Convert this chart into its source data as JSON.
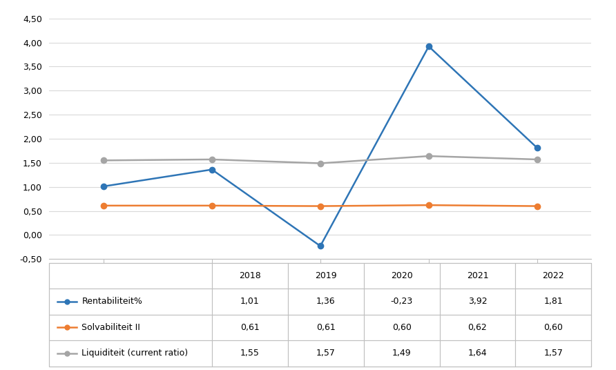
{
  "years": [
    2018,
    2019,
    2020,
    2021,
    2022
  ],
  "rentabiliteit": [
    1.01,
    1.36,
    -0.23,
    3.92,
    1.81
  ],
  "solvabiliteit": [
    0.61,
    0.61,
    0.6,
    0.62,
    0.6
  ],
  "liquiditeit": [
    1.55,
    1.57,
    1.49,
    1.64,
    1.57
  ],
  "rentabiliteit_color": "#2E75B6",
  "solvabiliteit_color": "#ED7D31",
  "liquiditeit_color": "#A5A5A5",
  "ylim": [
    -0.5,
    4.5
  ],
  "yticks": [
    -0.5,
    0.0,
    0.5,
    1.0,
    1.5,
    2.0,
    2.5,
    3.0,
    3.5,
    4.0,
    4.5
  ],
  "legend_labels": [
    "Rentabiliteit%",
    "Solvabiliteit II",
    "Liquiditeit (current ratio)"
  ],
  "table_values": [
    [
      1.01,
      1.36,
      -0.23,
      3.92,
      1.81
    ],
    [
      0.61,
      0.61,
      0.6,
      0.62,
      0.6
    ],
    [
      1.55,
      1.57,
      1.49,
      1.64,
      1.57
    ]
  ],
  "background_color": "#FFFFFF",
  "grid_color": "#D9D9D9",
  "border_color": "#BFBFBF",
  "figsize": [
    8.92,
    5.36
  ],
  "dpi": 100
}
